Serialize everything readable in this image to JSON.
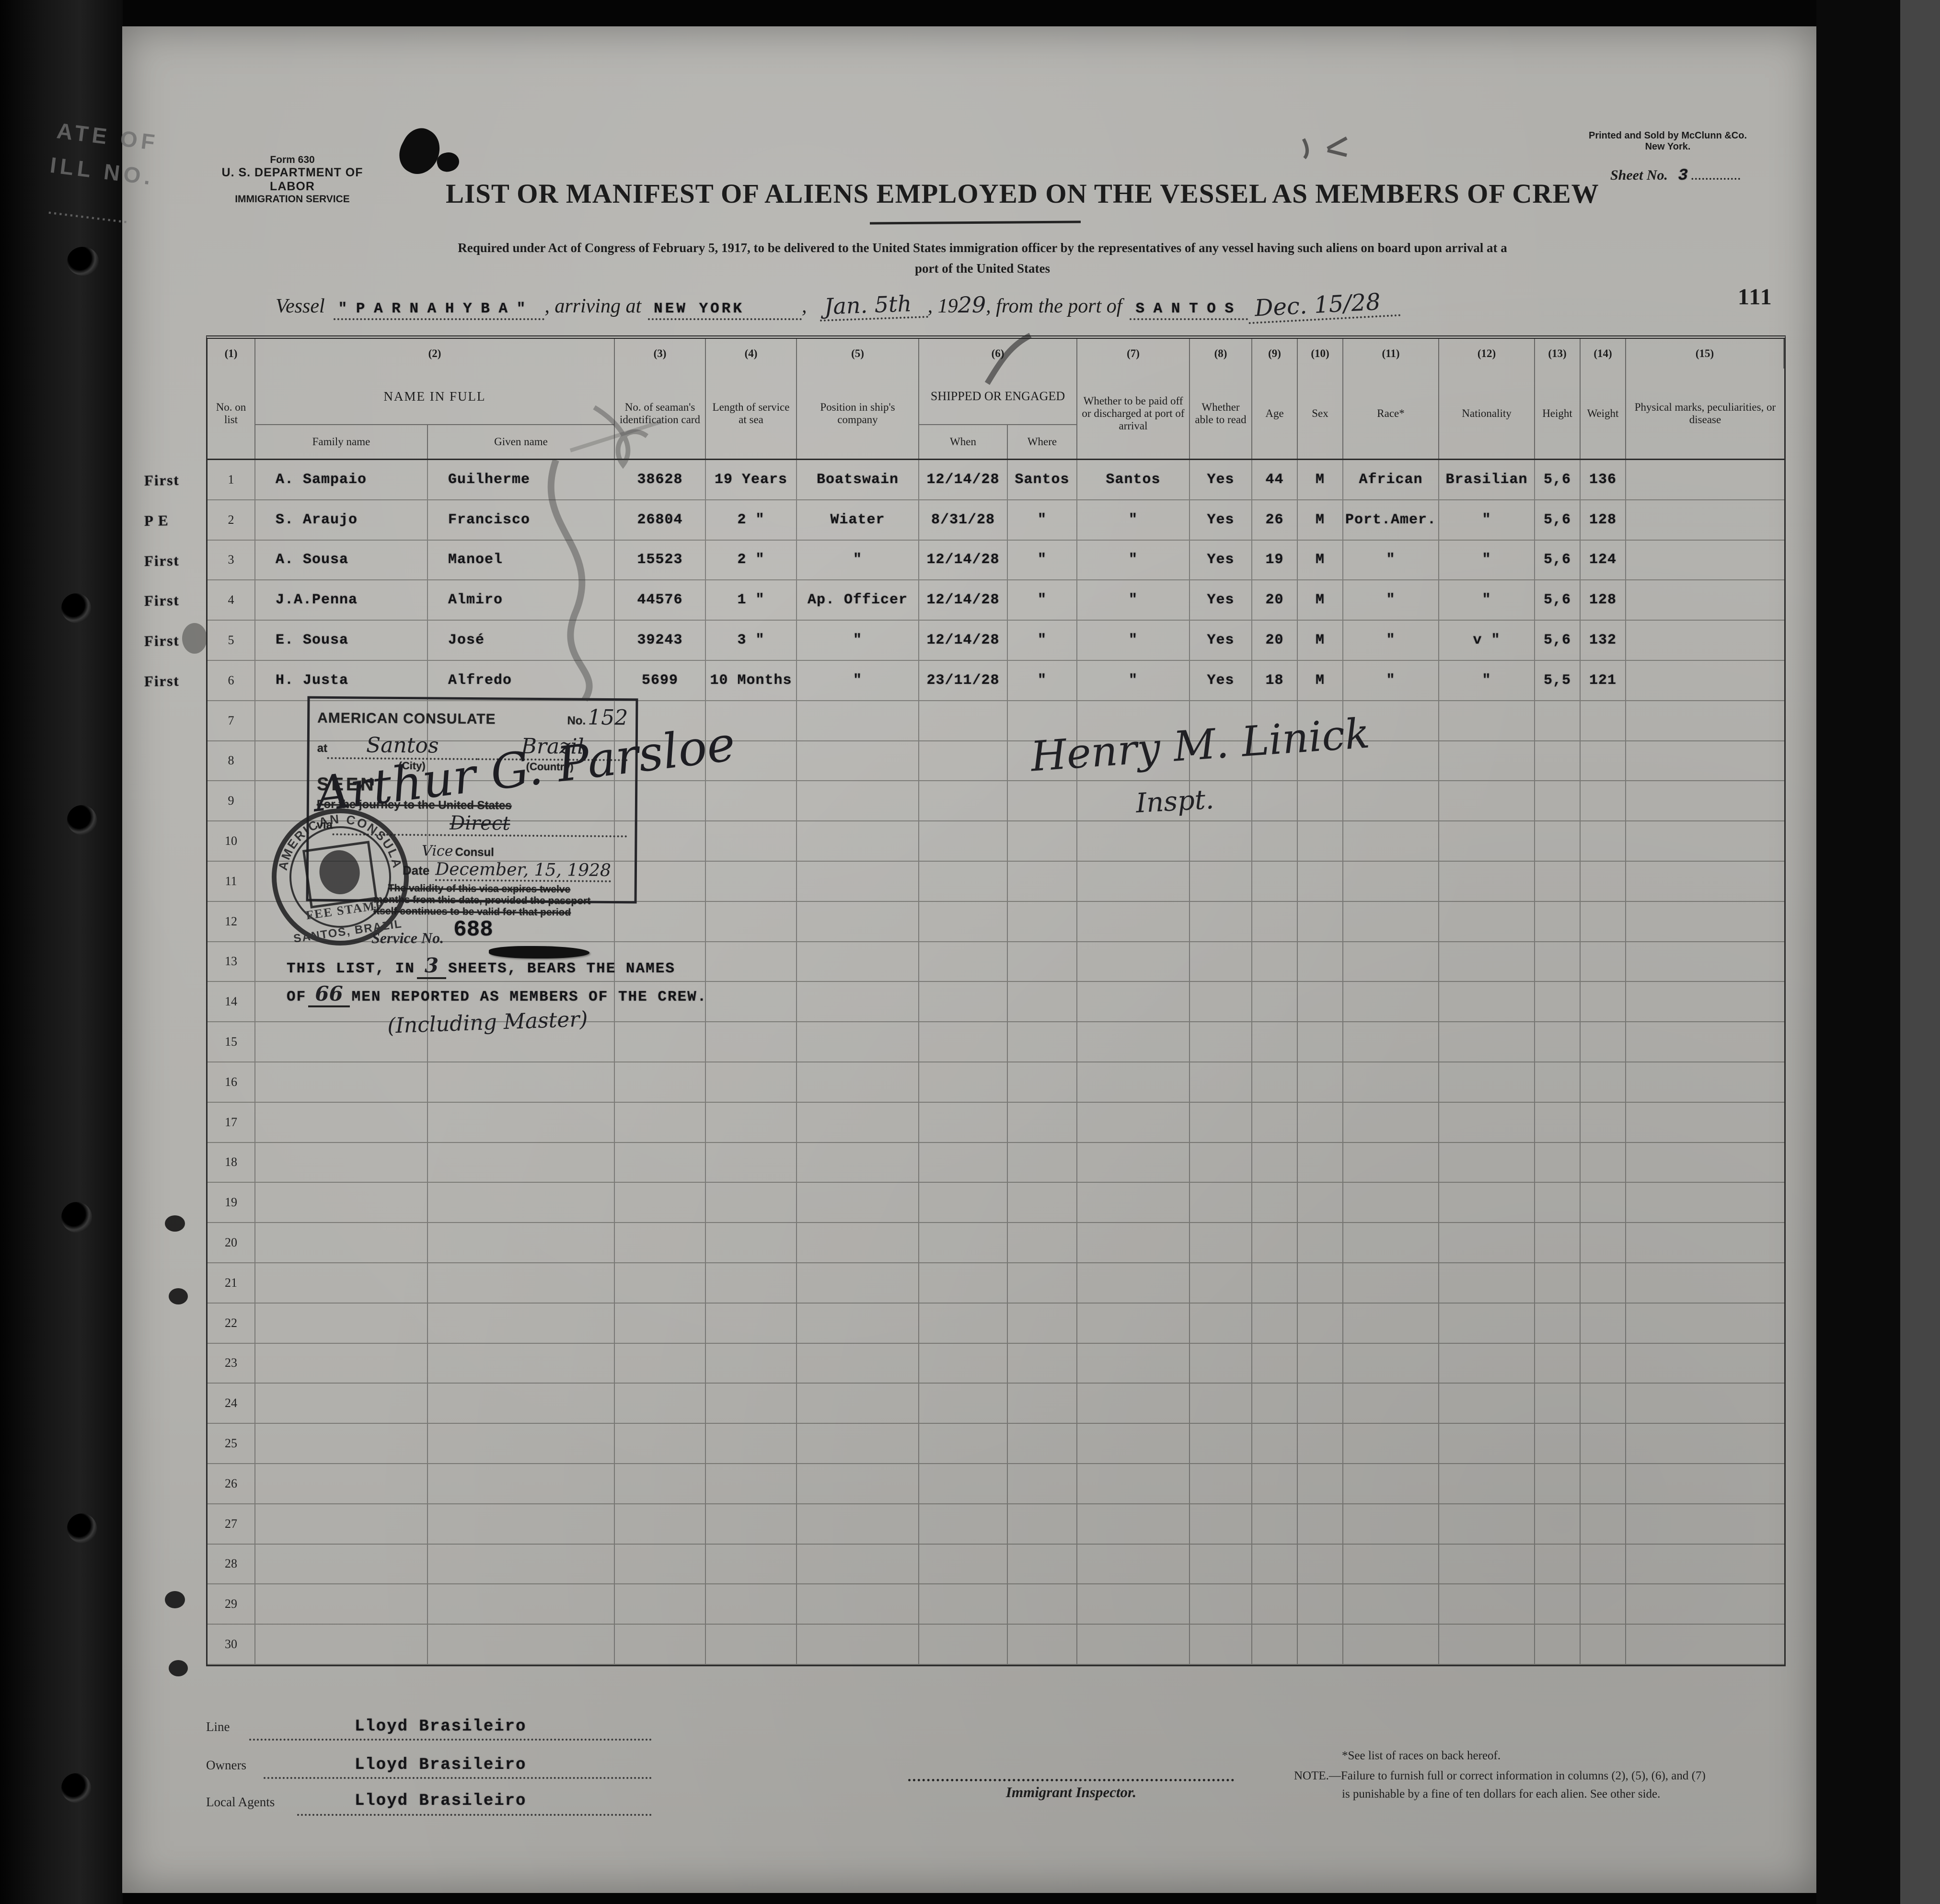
{
  "binder": {
    "stamp1": "ATE OF",
    "stamp2": "ILL NO."
  },
  "form_header": {
    "form_no": "Form 630",
    "department": "U. S. DEPARTMENT OF LABOR",
    "service": "IMMIGRATION SERVICE",
    "printer_line1": "Printed and Sold by McClunn &Co.",
    "printer_line2": "New York.",
    "sheet_label": "Sheet No.",
    "sheet_no": "3",
    "page_number": "111"
  },
  "title": "LIST OR MANIFEST OF ALIENS EMPLOYED ON THE VESSEL AS MEMBERS OF CREW",
  "subtitle_line1": "Required under Act of Congress of February 5, 1917, to be delivered to the United States immigration officer by the representatives of any vessel having such aliens on board upon arrival at a",
  "subtitle_line2": "port of the United States",
  "vessel_line": {
    "vessel_label": "Vessel",
    "vessel_name": "\" P A R N A H Y B A \"",
    "arriving_label": ", arriving at",
    "arrival_port": "NEW YORK",
    "arrival_date_hw": "Jan. 5th",
    "year_prefix": ", 19",
    "year_hw": "29",
    "from_label": ", from the port of",
    "from_port": "S A N T O S",
    "departure_date_hw": "Dec. 15/28"
  },
  "table": {
    "row_count": 30,
    "col_numbers": [
      "(1)",
      "(2)",
      "(3)",
      "(4)",
      "(5)",
      "(6)",
      "(7)",
      "(8)",
      "(9)",
      "(10)",
      "(11)",
      "(12)",
      "(13)",
      "(14)",
      "(15)"
    ],
    "headers": {
      "no_list": "No. on list",
      "name_full": "NAME IN FULL",
      "family": "Family name",
      "given": "Given name",
      "id_card": "No. of seaman's identification card",
      "length": "Length of service at sea",
      "position": "Position in ship's company",
      "shipped": "SHIPPED OR ENGAGED",
      "when": "When",
      "where": "Where",
      "paid": "Whether to be paid off or discharged at port of arrival",
      "read": "Whether able to read",
      "age": "Age",
      "sex": "Sex",
      "race": "Race*",
      "nationality": "Nationality",
      "height": "Height",
      "weight": "Weight",
      "marks": "Physical marks, peculiarities, or disease"
    },
    "rows": [
      {
        "stamp": "First",
        "no": "1",
        "family": "A. Sampaio",
        "given": "Guilherme",
        "id_card": "38628",
        "service": "19 Years",
        "position": "Boatswain",
        "when": "12/14/28",
        "where": "Santos",
        "paid_off": "Santos",
        "read": "Yes",
        "age": "44",
        "sex": "M",
        "race": "African",
        "nationality": "Brasilian",
        "height": "5,6",
        "weight": "136",
        "marks": ""
      },
      {
        "stamp": "P E",
        "no": "2",
        "family": "S. Araujo",
        "given": "Francisco",
        "id_card": "26804",
        "service": "2 \"",
        "position": "Wiater",
        "when": "8/31/28",
        "where": "\"",
        "paid_off": "\"",
        "read": "Yes",
        "age": "26",
        "sex": "M",
        "race": "Port.Amer.",
        "nationality": "\"",
        "height": "5,6",
        "weight": "128",
        "marks": ""
      },
      {
        "stamp": "First",
        "no": "3",
        "family": "A. Sousa",
        "given": "Manoel",
        "id_card": "15523",
        "service": "2 \"",
        "position": "\"",
        "when": "12/14/28",
        "where": "\"",
        "paid_off": "\"",
        "read": "Yes",
        "age": "19",
        "sex": "M",
        "race": "\"",
        "nationality": "\"",
        "height": "5,6",
        "weight": "124",
        "marks": ""
      },
      {
        "stamp": "First",
        "no": "4",
        "family": "J.A.Penna",
        "given": "Almiro",
        "id_card": "44576",
        "service": "1 \"",
        "position": "Ap. Officer",
        "when": "12/14/28",
        "where": "\"",
        "paid_off": "\"",
        "read": "Yes",
        "age": "20",
        "sex": "M",
        "race": "\"",
        "nationality": "\"",
        "height": "5,6",
        "weight": "128",
        "marks": ""
      },
      {
        "stamp": "First",
        "no": "5",
        "family": "E. Sousa",
        "given": "José",
        "id_card": "39243",
        "service": "3 \"",
        "position": "\"",
        "when": "12/14/28",
        "where": "\"",
        "paid_off": "\"",
        "read": "Yes",
        "age": "20",
        "sex": "M",
        "race": "\"",
        "nationality": "v \"",
        "height": "5,6",
        "weight": "132",
        "marks": ""
      },
      {
        "stamp": "First",
        "no": "6",
        "family": "H. Justa",
        "given": "Alfredo",
        "id_card": "5699",
        "service": "10 Months",
        "position": "\"",
        "when": "23/11/28",
        "where": "\"",
        "paid_off": "\"",
        "read": "Yes",
        "age": "18",
        "sex": "M",
        "race": "\"",
        "nationality": "\"",
        "height": "5,5",
        "weight": "121",
        "marks": ""
      }
    ]
  },
  "consulate_stamp": {
    "title": "AMERICAN CONSULATE",
    "no_label": "No.",
    "no_value": "152",
    "at_label": "at",
    "city_value": "Santos",
    "country_value": "Brazil",
    "city_caption": "(City)",
    "country_caption": "(Country)",
    "seen": "SEEN",
    "journey": "For the journey to the United States",
    "via_label": "via",
    "via_value": "Direct",
    "vice_hw": "Vice",
    "consul_label": "Consul",
    "date_label": "Date",
    "date_value": "December, 15, 1928",
    "validity_line1": "The validity of this visa expires twelve",
    "validity_line2": "months from this date, provided the passport",
    "validity_line3": "itself continues to be valid for that period",
    "signature": "Arthur G. Parsloe"
  },
  "seal": {
    "ring_top": "AMERICAN CONSULATE",
    "ring_bottom": "SANTOS, BRAZIL",
    "center": "FEE STAMP"
  },
  "service_stamp": {
    "label": "Service No.",
    "value": "688"
  },
  "list_note": {
    "line1_a": "THIS LIST, IN",
    "sheets_hw": "3",
    "line1_b": "SHEETS, BEARS THE NAMES",
    "line2_a": "OF",
    "men_hw": "66",
    "line2_b": "MEN REPORTED AS MEMBERS OF THE CREW.",
    "including_hw": "(Including Master)"
  },
  "inspector_signature": {
    "name": "Henry M. Linick",
    "title": "Inspt."
  },
  "footer": {
    "line_label": "Line",
    "line_value": "Lloyd Brasileiro",
    "owners_label": "Owners",
    "owners_value": "Lloyd Brasileiro",
    "agents_label": "Local Agents",
    "agents_value": "Lloyd Brasileiro",
    "inspector_caption": "Immigrant Inspector.",
    "note_races": "*See list of races on back hereof.",
    "note_line1": "NOTE.—Failure to furnish full or correct information in columns (2), (5), (6), and (7)",
    "note_line2": "is punishable by a fine of ten dollars for each alien.  See other side."
  }
}
